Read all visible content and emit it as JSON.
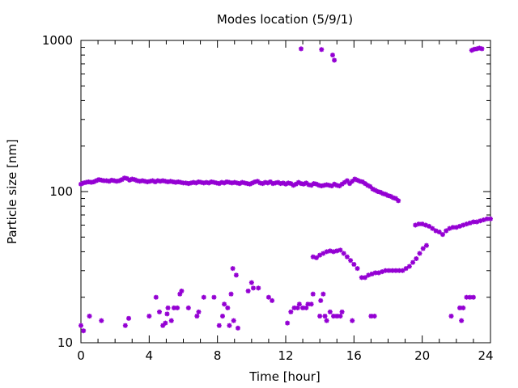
{
  "chart_data": {
    "type": "scatter",
    "title": "Modes location (5/9/1)",
    "xlabel": "Time [hour]",
    "ylabel": "Particle size [nm]",
    "xlim": [
      0,
      24
    ],
    "ylim": [
      10,
      1000
    ],
    "yscale": "log",
    "xticks": [
      0,
      4,
      8,
      12,
      16,
      20,
      24
    ],
    "xtick_labels": [
      "0",
      "4",
      "8",
      "12",
      "16",
      "20",
      "24"
    ],
    "yticks": [
      10,
      100,
      1000
    ],
    "ytick_labels": [
      "10",
      "100",
      "1000"
    ],
    "grid": false,
    "legend": "none",
    "marker_color": "#9400d3",
    "series": [
      {
        "points": [
          [
            0.0,
            112
          ],
          [
            0.15,
            114
          ],
          [
            0.3,
            115
          ],
          [
            0.45,
            116
          ],
          [
            0.6,
            115
          ],
          [
            0.75,
            116
          ],
          [
            0.9,
            118
          ],
          [
            1.05,
            120
          ],
          [
            1.2,
            119
          ],
          [
            1.35,
            118
          ],
          [
            1.5,
            118
          ],
          [
            1.65,
            117
          ],
          [
            1.8,
            119
          ],
          [
            1.95,
            118
          ],
          [
            2.1,
            117
          ],
          [
            2.25,
            118
          ],
          [
            2.4,
            120
          ],
          [
            2.55,
            123
          ],
          [
            2.7,
            122
          ],
          [
            2.85,
            119
          ],
          [
            3.0,
            121
          ],
          [
            3.15,
            120
          ],
          [
            3.3,
            118
          ],
          [
            3.45,
            117
          ],
          [
            3.6,
            118
          ],
          [
            3.75,
            117
          ],
          [
            3.9,
            116
          ],
          [
            4.05,
            117
          ],
          [
            4.2,
            118
          ],
          [
            4.35,
            116
          ],
          [
            4.5,
            118
          ],
          [
            4.65,
            117
          ],
          [
            4.8,
            118
          ],
          [
            4.95,
            117
          ],
          [
            5.1,
            116
          ],
          [
            5.25,
            117
          ],
          [
            5.4,
            116
          ],
          [
            5.55,
            115
          ],
          [
            5.7,
            116
          ],
          [
            5.85,
            115
          ],
          [
            6.0,
            114
          ],
          [
            6.15,
            114
          ],
          [
            6.3,
            113
          ],
          [
            6.45,
            114
          ],
          [
            6.6,
            115
          ],
          [
            6.75,
            114
          ],
          [
            6.9,
            116
          ],
          [
            7.05,
            115
          ],
          [
            7.2,
            114
          ],
          [
            7.35,
            115
          ],
          [
            7.5,
            114
          ],
          [
            7.65,
            116
          ],
          [
            7.8,
            115
          ],
          [
            7.95,
            114
          ],
          [
            8.1,
            113
          ],
          [
            8.25,
            115
          ],
          [
            8.4,
            114
          ],
          [
            8.55,
            116
          ],
          [
            8.7,
            115
          ],
          [
            8.85,
            114
          ],
          [
            9.0,
            115
          ],
          [
            9.15,
            114
          ],
          [
            9.3,
            113
          ],
          [
            9.45,
            115
          ],
          [
            9.6,
            114
          ],
          [
            9.75,
            113
          ],
          [
            9.9,
            112
          ],
          [
            10.05,
            114
          ],
          [
            10.2,
            116
          ],
          [
            10.35,
            117
          ],
          [
            10.5,
            114
          ],
          [
            10.65,
            113
          ],
          [
            10.8,
            115
          ],
          [
            10.95,
            114
          ],
          [
            11.1,
            116
          ],
          [
            11.25,
            113
          ],
          [
            11.4,
            114
          ],
          [
            11.55,
            115
          ],
          [
            11.7,
            113
          ],
          [
            11.85,
            114
          ],
          [
            12.0,
            112
          ],
          [
            12.15,
            114
          ],
          [
            12.3,
            113
          ],
          [
            12.45,
            110
          ],
          [
            12.6,
            112
          ],
          [
            12.75,
            115
          ],
          [
            12.9,
            113
          ],
          [
            13.05,
            112
          ],
          [
            13.2,
            114
          ],
          [
            13.35,
            111
          ],
          [
            13.5,
            110
          ],
          [
            13.65,
            113
          ],
          [
            13.8,
            112
          ],
          [
            13.95,
            110
          ],
          [
            14.1,
            109
          ],
          [
            14.25,
            110
          ],
          [
            14.4,
            111
          ],
          [
            14.55,
            110
          ],
          [
            14.7,
            109
          ],
          [
            14.85,
            112
          ],
          [
            15.0,
            110
          ],
          [
            15.15,
            109
          ],
          [
            15.3,
            112
          ],
          [
            15.45,
            115
          ],
          [
            15.6,
            118
          ],
          [
            15.75,
            113
          ],
          [
            15.9,
            117
          ],
          [
            16.05,
            121
          ],
          [
            16.2,
            119
          ],
          [
            16.35,
            117
          ],
          [
            16.5,
            116
          ],
          [
            16.65,
            113
          ],
          [
            16.8,
            110
          ],
          [
            16.95,
            108
          ],
          [
            17.1,
            104
          ],
          [
            17.25,
            102
          ],
          [
            17.4,
            100
          ],
          [
            17.55,
            99
          ],
          [
            17.7,
            97
          ],
          [
            17.85,
            96
          ],
          [
            18.0,
            94
          ],
          [
            18.15,
            93
          ],
          [
            18.3,
            91
          ],
          [
            18.45,
            90
          ],
          [
            18.6,
            87
          ],
          [
            12.9,
            880
          ],
          [
            14.1,
            870
          ],
          [
            14.75,
            800
          ],
          [
            14.85,
            740
          ],
          [
            22.9,
            860
          ],
          [
            23.05,
            875
          ],
          [
            23.2,
            880
          ],
          [
            23.35,
            890
          ],
          [
            23.5,
            880
          ],
          [
            16.45,
            27
          ],
          [
            16.65,
            27
          ],
          [
            16.85,
            28
          ],
          [
            17.05,
            28.5
          ],
          [
            17.25,
            29
          ],
          [
            17.45,
            29
          ],
          [
            17.65,
            29.5
          ],
          [
            17.85,
            30
          ],
          [
            18.05,
            30
          ],
          [
            18.25,
            30
          ],
          [
            18.45,
            30
          ],
          [
            18.65,
            30
          ],
          [
            18.85,
            30
          ],
          [
            19.05,
            31
          ],
          [
            19.25,
            32
          ],
          [
            19.45,
            34
          ],
          [
            19.65,
            36
          ],
          [
            19.85,
            39
          ],
          [
            20.05,
            42
          ],
          [
            20.25,
            44
          ],
          [
            13.6,
            37
          ],
          [
            13.8,
            36.5
          ],
          [
            14.0,
            38
          ],
          [
            14.2,
            39
          ],
          [
            14.4,
            40
          ],
          [
            14.6,
            40.5
          ],
          [
            14.8,
            40
          ],
          [
            15.0,
            40.5
          ],
          [
            15.2,
            41
          ],
          [
            15.4,
            39
          ],
          [
            15.6,
            37
          ],
          [
            15.8,
            35
          ],
          [
            16.0,
            33
          ],
          [
            16.2,
            31
          ],
          [
            19.6,
            60
          ],
          [
            19.8,
            61
          ],
          [
            20.0,
            61
          ],
          [
            20.2,
            60
          ],
          [
            20.4,
            59
          ],
          [
            20.6,
            57
          ],
          [
            20.8,
            55
          ],
          [
            21.0,
            54
          ],
          [
            21.2,
            52
          ],
          [
            21.4,
            55
          ],
          [
            21.6,
            57
          ],
          [
            21.8,
            58
          ],
          [
            22.0,
            58
          ],
          [
            22.2,
            59
          ],
          [
            22.4,
            60
          ],
          [
            22.6,
            61
          ],
          [
            22.8,
            62
          ],
          [
            23.0,
            63
          ],
          [
            23.2,
            63
          ],
          [
            23.4,
            64
          ],
          [
            23.6,
            65
          ],
          [
            23.8,
            66
          ],
          [
            24.0,
            66
          ],
          [
            0.0,
            13
          ],
          [
            0.15,
            12
          ],
          [
            0.5,
            15
          ],
          [
            1.2,
            14
          ],
          [
            2.6,
            13
          ],
          [
            2.8,
            14.5
          ],
          [
            4.0,
            15
          ],
          [
            4.4,
            20
          ],
          [
            4.6,
            16
          ],
          [
            4.8,
            13
          ],
          [
            4.95,
            13.5
          ],
          [
            5.05,
            15.5
          ],
          [
            5.1,
            17
          ],
          [
            5.3,
            14
          ],
          [
            5.45,
            17
          ],
          [
            5.65,
            17
          ],
          [
            5.8,
            21
          ],
          [
            5.9,
            22
          ],
          [
            6.3,
            17
          ],
          [
            6.8,
            15
          ],
          [
            6.9,
            16
          ],
          [
            7.2,
            20
          ],
          [
            7.8,
            20
          ],
          [
            8.1,
            13
          ],
          [
            8.3,
            15
          ],
          [
            8.4,
            18
          ],
          [
            8.6,
            17
          ],
          [
            8.7,
            13
          ],
          [
            8.8,
            21
          ],
          [
            8.9,
            31
          ],
          [
            8.95,
            14
          ],
          [
            9.1,
            28
          ],
          [
            9.2,
            12.5
          ],
          [
            9.8,
            22
          ],
          [
            10.0,
            25
          ],
          [
            10.1,
            23
          ],
          [
            10.4,
            23
          ],
          [
            11.0,
            20
          ],
          [
            11.2,
            19
          ],
          [
            12.1,
            13.5
          ],
          [
            12.3,
            16
          ],
          [
            12.5,
            17
          ],
          [
            12.7,
            17
          ],
          [
            12.8,
            18
          ],
          [
            13.0,
            17
          ],
          [
            13.2,
            17
          ],
          [
            13.3,
            18
          ],
          [
            13.5,
            18
          ],
          [
            13.6,
            21
          ],
          [
            14.0,
            15
          ],
          [
            14.05,
            19
          ],
          [
            14.2,
            21
          ],
          [
            14.3,
            15
          ],
          [
            14.4,
            14
          ],
          [
            14.6,
            16
          ],
          [
            14.8,
            15
          ],
          [
            15.0,
            15
          ],
          [
            15.2,
            15
          ],
          [
            15.3,
            16
          ],
          [
            15.9,
            14
          ],
          [
            17.0,
            15
          ],
          [
            17.2,
            15
          ],
          [
            21.7,
            15
          ],
          [
            22.2,
            17
          ],
          [
            22.3,
            14
          ],
          [
            22.4,
            17
          ],
          [
            22.6,
            20
          ],
          [
            22.8,
            20
          ],
          [
            23.0,
            20
          ]
        ]
      }
    ]
  }
}
